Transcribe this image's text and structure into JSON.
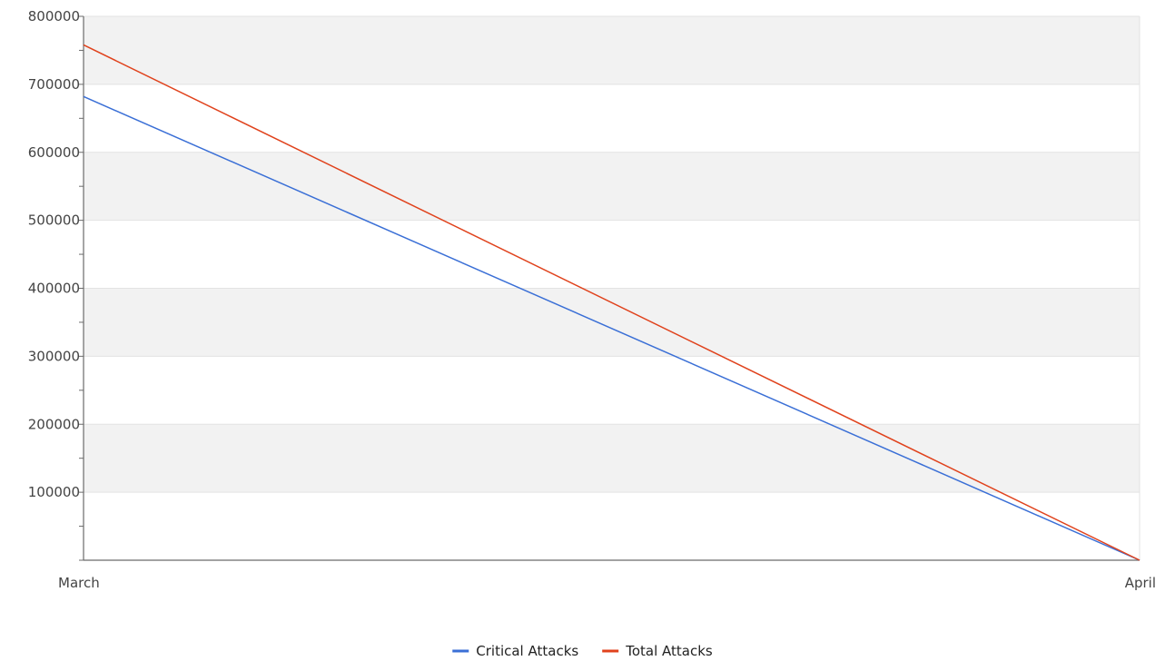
{
  "chart_data": {
    "type": "line",
    "title": "",
    "xlabel": "",
    "ylabel": "",
    "categories": [
      "March",
      "April"
    ],
    "ylim": [
      0,
      800000
    ],
    "yticks": [
      100000,
      200000,
      300000,
      400000,
      500000,
      600000,
      700000,
      800000
    ],
    "ytick_labels": [
      "100000",
      "200000",
      "300000",
      "400000",
      "500000",
      "600000",
      "700000",
      "800000"
    ],
    "grid": true,
    "alternating_bands": true,
    "legend_position": "bottom-center",
    "series": [
      {
        "name": "Critical Attacks",
        "color": "#3a6fd6",
        "values": [
          682000,
          0
        ]
      },
      {
        "name": "Total Attacks",
        "color": "#e0421c",
        "values": [
          758000,
          0
        ]
      }
    ],
    "colors": {
      "band": "#f2f2f2",
      "gridline": "#e3e3e3",
      "axis": "#6b6b6b",
      "tick_text": "#444444"
    }
  }
}
